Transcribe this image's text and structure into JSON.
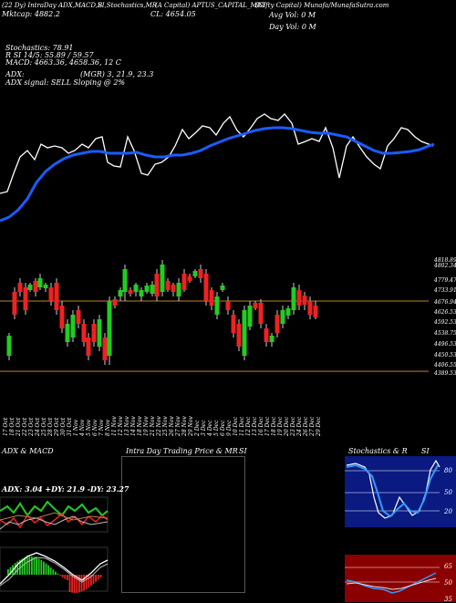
{
  "header": {
    "tag_line": "(22 Dy) IntraDay ADX,MACD,B",
    "tag_line2": "Mktcap: 4882.2",
    "si_tag": "SI,Stochastics,MR",
    "symbol_full": "(A Capital) APTUS_CAPITAL_MKT",
    "symbol_short": "CL: 4654.05",
    "munafa_tag": "(Nifty Capital) Munafa/MunafaSutra.com",
    "avg_vol": "Avg Vol: 0   M",
    "day_vol": "Day Vol: 0   M"
  },
  "indicators": {
    "stochastics": "Stochastics: 78.91",
    "rsi": "R     SI 14/5: 55.89 / 59.57",
    "macd": "MACD: 4663.36,  4658.36,  12  C",
    "adx": "ADX:",
    "mgr": "(MGR) 3,  21.9,  23.3",
    "adx_signal": "ADX  signal: SELL  Sloping @ 2%"
  },
  "price_axis": [
    {
      "label": "4818.89"
    },
    {
      "label": "4802.34"
    },
    {
      "label": "4779.47"
    },
    {
      "label": "4733.91"
    },
    {
      "label": "4676.94"
    },
    {
      "label": "4626.53"
    },
    {
      "label": "4592.53"
    },
    {
      "label": "4538.75"
    },
    {
      "label": "4496.53"
    },
    {
      "label": "4450.53"
    },
    {
      "label": "4406.55"
    },
    {
      "label": "4389.53"
    }
  ],
  "dates": [
    "17 Oct",
    "18 Oct",
    "21 Oct",
    "22 Oct",
    "23 Oct",
    "24 Oct",
    "25 Oct",
    "28 Oct",
    "29 Oct",
    "30 Oct",
    "31 Oct",
    "1 Nov",
    "4 Nov",
    "5 Nov",
    "6 Nov",
    "7 Nov",
    "8 Nov",
    "11 Nov",
    "12 Nov",
    "13 Nov",
    "14 Nov",
    "18 Nov",
    "19 Nov",
    "21 Nov",
    "22 Nov",
    "25 Nov",
    "26 Nov",
    "27 Nov",
    "28 Nov",
    "29 Nov",
    "2 Dec",
    "3 Dec",
    "4 Dec",
    "5 Dec",
    "6 Dec",
    "9 Dec",
    "10 Dec",
    "11 Dec",
    "12 Dec",
    "13 Dec",
    "16 Dec",
    "17 Dec",
    "18 Dec",
    "19 Dec",
    "20 Dec",
    "23 Dec",
    "24 Dec",
    "26 Dec",
    "27 Dec",
    "29 Dec"
  ],
  "bottom_panels": {
    "adx_macd_title": "ADX  & MACD",
    "adx_readout": "ADX: 3.04  +DY: 21.9  -DY: 23.27",
    "intraday_title": "Intra  Day Trading Price  & MR",
    "intraday_si": "SI",
    "stoch_title": "Stochastics & R",
    "stoch_si": "SI",
    "stoch_levels": [
      "80",
      "50",
      "20"
    ],
    "rsi_levels": [
      "65",
      "50",
      "35"
    ]
  },
  "colors": {
    "up": "#22cc22",
    "down": "#ee2222",
    "ma": "#1a5cff",
    "price_line": "#ffffff",
    "level_line": "#b8862b"
  }
}
